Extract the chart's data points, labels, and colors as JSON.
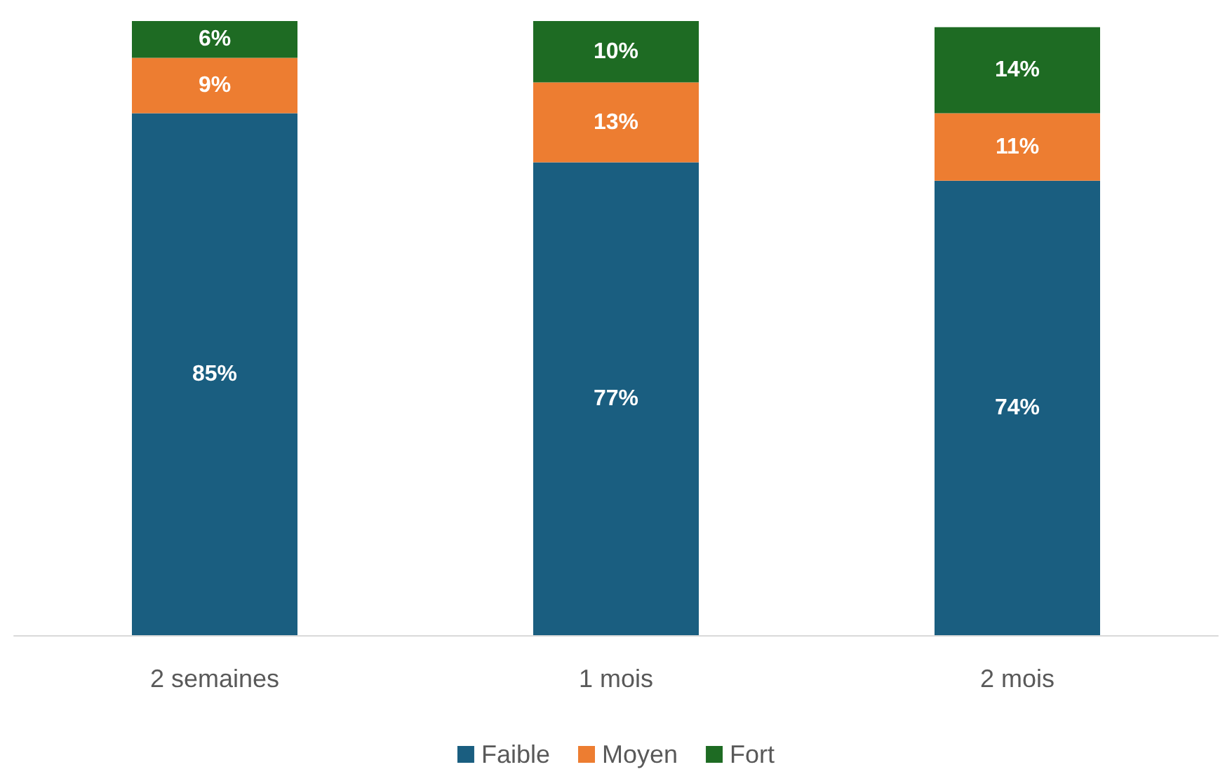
{
  "chart_data": {
    "type": "bar",
    "stacked": true,
    "categories": [
      "2 semaines",
      "1 mois",
      "2 mois"
    ],
    "series": [
      {
        "name": "Faible",
        "color": "#1a5e80",
        "values": [
          85,
          77,
          74
        ],
        "value_labels": [
          "85%",
          "77%",
          "74%"
        ]
      },
      {
        "name": "Moyen",
        "color": "#ed7d31",
        "values": [
          9,
          13,
          11
        ],
        "value_labels": [
          "9%",
          "13%",
          "11%"
        ]
      },
      {
        "name": "Fort",
        "color": "#1e6b23",
        "values": [
          6,
          10,
          14
        ],
        "value_labels": [
          "6%",
          "10%",
          "14%"
        ]
      }
    ],
    "legend": "bottom",
    "grid": false
  }
}
